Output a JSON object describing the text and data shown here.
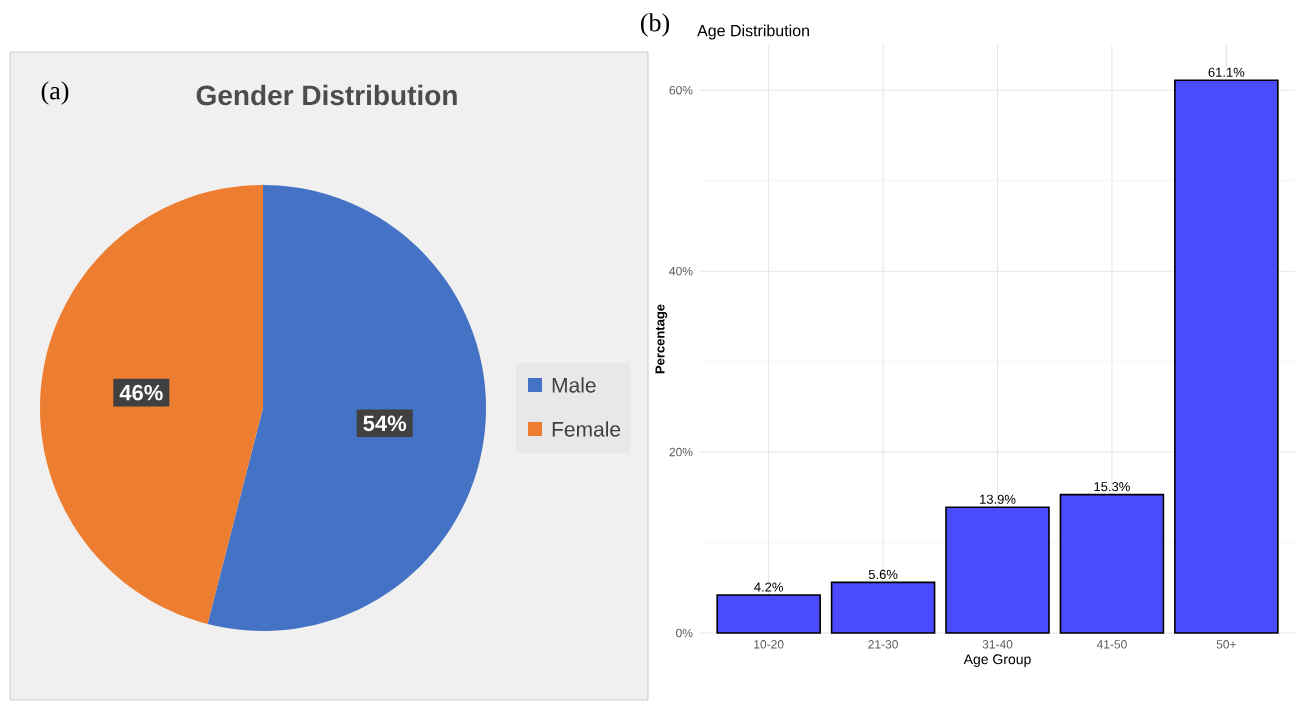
{
  "chart_data": [
    {
      "type": "pie",
      "title": "Gender Distribution",
      "annotations": [
        "(a)"
      ],
      "categories": [
        "Male",
        "Female"
      ],
      "values": [
        54,
        46
      ],
      "colors": [
        "#4472c4",
        "#ed7d31"
      ],
      "value_labels": [
        "54%",
        "46%"
      ],
      "legend": "right"
    },
    {
      "type": "bar",
      "title": "Age Distribution",
      "annotations": [
        "(b)"
      ],
      "xlabel": "Age Group",
      "ylabel": "Percentage",
      "categories": [
        "10-20",
        "21-30",
        "31-40",
        "41-50",
        "50+"
      ],
      "values": [
        4.2,
        5.6,
        13.9,
        15.3,
        61.1
      ],
      "color": "#4b4bff",
      "value_labels": [
        "4.2%",
        "5.6%",
        "13.9%",
        "15.3%",
        "61.1%"
      ],
      "ylim": [
        0,
        65
      ],
      "yticks": [
        {
          "value": 0,
          "label": "0%"
        },
        {
          "value": 20,
          "label": "20%"
        },
        {
          "value": 40,
          "label": "40%"
        },
        {
          "value": 60,
          "label": "60%"
        }
      ],
      "grid": true
    }
  ]
}
